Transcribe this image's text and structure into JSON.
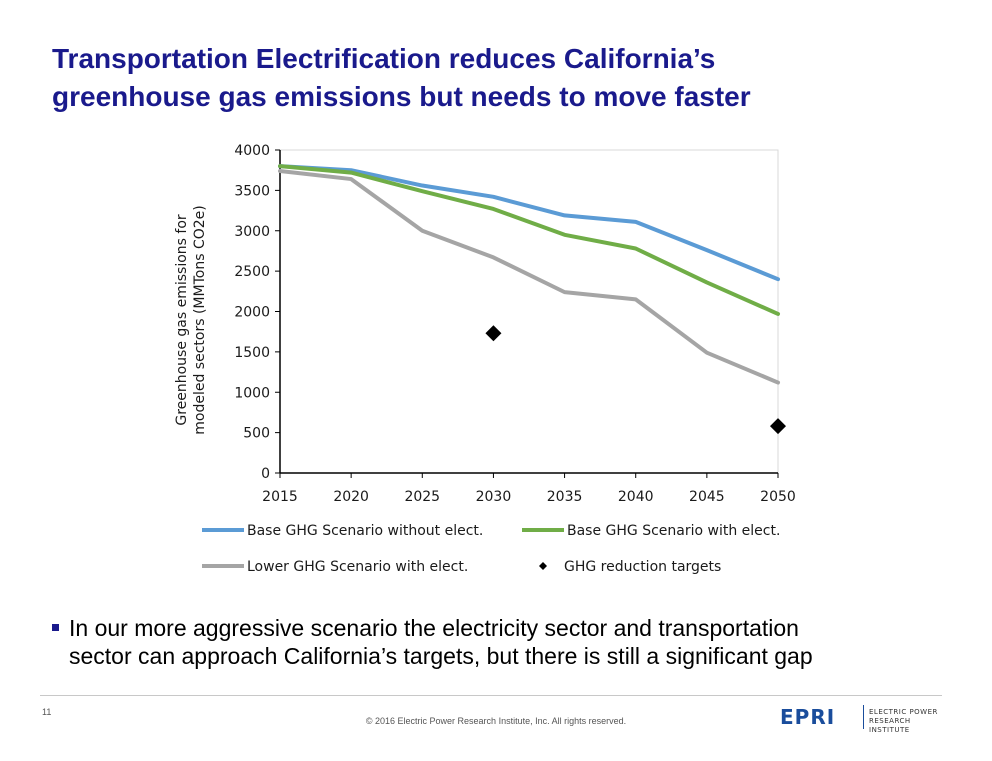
{
  "slide": {
    "title_line1": "Transportation Electrification reduces California’s",
    "title_line2": "greenhouse gas emissions but needs to move faster",
    "bullet_line1": "In our more aggressive scenario the electricity sector and transportation",
    "bullet_line2": "sector can approach California’s targets, but there is still a significant gap",
    "page_number": "11",
    "copyright": "© 2016 Electric Power Research Institute, Inc. All rights reserved.",
    "logo_mark": "EPRI",
    "logo_line1": "ELECTRIC POWER",
    "logo_line2": "RESEARCH INSTITUTE"
  },
  "chart_data": {
    "type": "line",
    "title": "",
    "xlabel": "",
    "ylabel_line1": "Greenhouse gas emissions for",
    "ylabel_line2": "modeled sectors (MMTons CO2e)",
    "x": [
      2015,
      2020,
      2025,
      2030,
      2035,
      2040,
      2045,
      2050
    ],
    "xlim": [
      2015,
      2050
    ],
    "ylim": [
      0,
      4000
    ],
    "xticks": [
      2015,
      2020,
      2025,
      2030,
      2035,
      2040,
      2045,
      2050
    ],
    "yticks": [
      0,
      500,
      1000,
      1500,
      2000,
      2500,
      3000,
      3500,
      4000
    ],
    "grid": false,
    "legend_position": "bottom",
    "series": [
      {
        "name": "Base GHG Scenario without elect.",
        "type": "line",
        "color": "#5b9bd5",
        "values": [
          3800,
          3750,
          3560,
          3420,
          3190,
          3110,
          2760,
          2400
        ]
      },
      {
        "name": "Base GHG Scenario with elect.",
        "type": "line",
        "color": "#70ad47",
        "values": [
          3800,
          3720,
          3490,
          3270,
          2950,
          2780,
          2360,
          1970
        ]
      },
      {
        "name": "Lower GHG Scenario with elect.",
        "type": "line",
        "color": "#a5a5a5",
        "values": [
          3740,
          3640,
          3000,
          2670,
          2240,
          2150,
          1490,
          1120
        ]
      },
      {
        "name": "GHG reduction targets",
        "type": "scatter",
        "color": "#000000",
        "marker": "diamond",
        "points": [
          {
            "x": 2030,
            "y": 1730
          },
          {
            "x": 2050,
            "y": 580
          }
        ]
      }
    ]
  }
}
